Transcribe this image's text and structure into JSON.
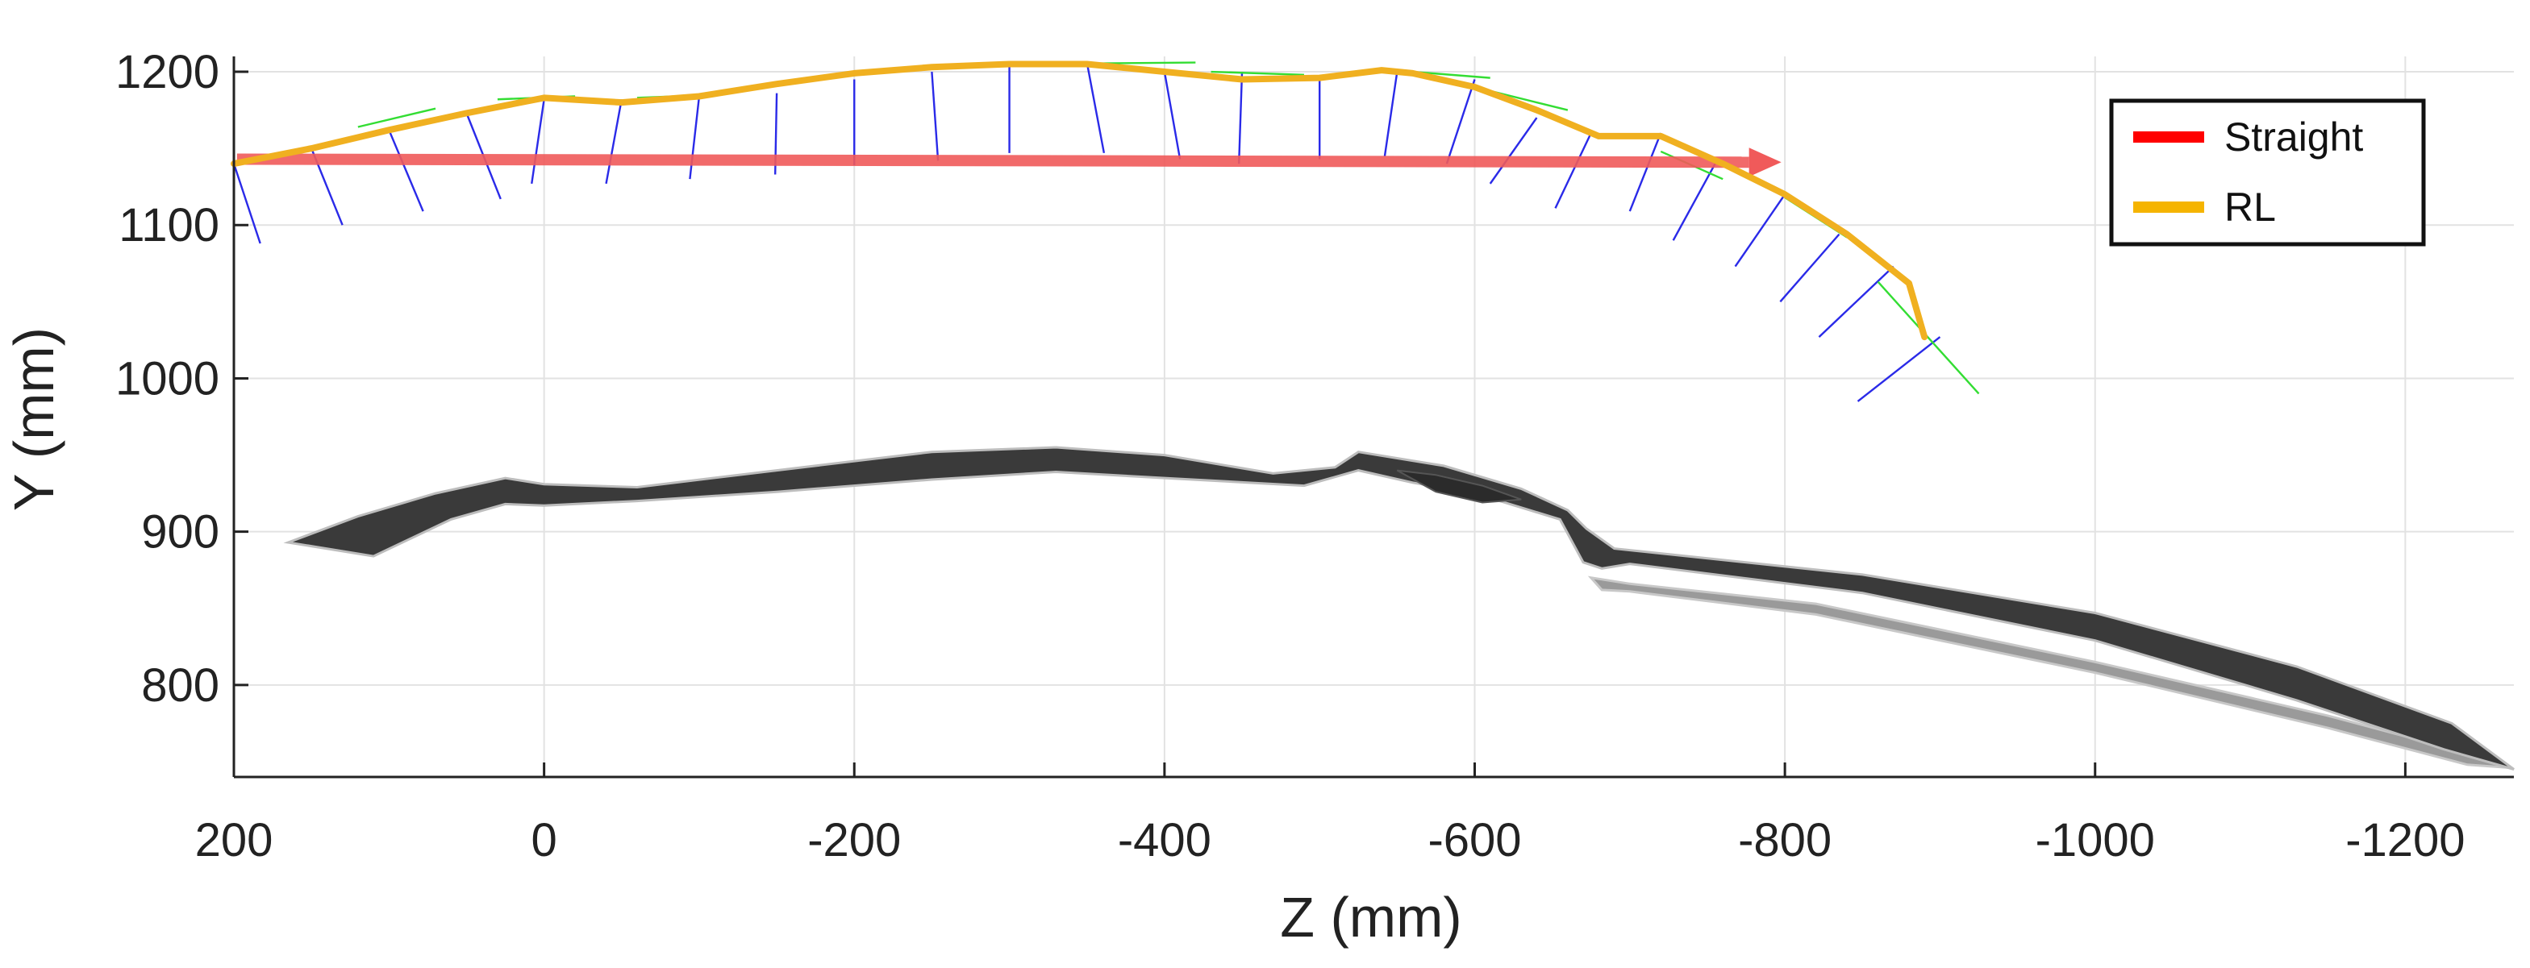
{
  "chart_data": {
    "type": "line",
    "title": "",
    "xlabel": "Z (mm)",
    "ylabel": "Y (mm)",
    "xlim": [
      200,
      -1270
    ],
    "ylim": [
      740,
      1210
    ],
    "x_ticks": [
      200,
      0,
      -200,
      -400,
      -600,
      -800,
      -1000,
      -1200
    ],
    "x_tick_labels": [
      "200",
      "0",
      "-200",
      "-400",
      "-600",
      "-800",
      "-1000",
      "-1200"
    ],
    "y_ticks": [
      800,
      900,
      1000,
      1100,
      1200
    ],
    "y_tick_labels": [
      "800",
      "900",
      "1000",
      "1100",
      "1200"
    ],
    "grid": true,
    "legend_position": "top-right",
    "colors": {
      "straight": "#f05a5a",
      "rl": "#f0b020",
      "normals": "#2a2ae8",
      "tangents": "#33dd33",
      "body_dark": "#3a3a3a",
      "body_light": "#9a9a9a",
      "grid": "#e2e2e2",
      "axis": "#222222"
    },
    "series": [
      {
        "name": "Straight",
        "legend_color": "#ff0000",
        "x": [
          198,
          -780
        ],
        "y": [
          1143,
          1141
        ]
      },
      {
        "name": "RL",
        "legend_color": "#f5b400",
        "x": [
          200,
          150,
          100,
          50,
          0,
          -50,
          -100,
          -150,
          -200,
          -250,
          -300,
          -350,
          -400,
          -450,
          -500,
          -540,
          -560,
          -600,
          -640,
          -680,
          -720,
          -760,
          -800,
          -840,
          -880,
          -890
        ],
        "y": [
          1140,
          1150,
          1162,
          1173,
          1183,
          1180,
          1184,
          1192,
          1199,
          1203,
          1205,
          1205,
          1200,
          1195,
          1196,
          1201,
          1199,
          1190,
          1175,
          1158,
          1158,
          1140,
          1120,
          1094,
          1062,
          1027
        ]
      }
    ],
    "normals": [
      {
        "z": 200,
        "y": 1140,
        "z2": 183,
        "y2": 1088
      },
      {
        "z": 150,
        "y": 1150,
        "z2": 130,
        "y2": 1100
      },
      {
        "z": 100,
        "y": 1162,
        "z2": 78,
        "y2": 1109
      },
      {
        "z": 50,
        "y": 1173,
        "z2": 28,
        "y2": 1117
      },
      {
        "z": 0,
        "y": 1182,
        "z2": 8,
        "y2": 1127
      },
      {
        "z": -50,
        "y": 1182,
        "z2": -40,
        "y2": 1127
      },
      {
        "z": -100,
        "y": 1184,
        "z2": -94,
        "y2": 1130
      },
      {
        "z": -150,
        "y": 1186,
        "z2": -149,
        "y2": 1133
      },
      {
        "z": -200,
        "y": 1195,
        "z2": -200,
        "y2": 1139
      },
      {
        "z": -250,
        "y": 1200,
        "z2": -254,
        "y2": 1142
      },
      {
        "z": -300,
        "y": 1204,
        "z2": -300,
        "y2": 1147
      },
      {
        "z": -350,
        "y": 1206,
        "z2": -361,
        "y2": 1147
      },
      {
        "z": -400,
        "y": 1200,
        "z2": -410,
        "y2": 1143
      },
      {
        "z": -450,
        "y": 1200,
        "z2": -448,
        "y2": 1140
      },
      {
        "z": -500,
        "y": 1197,
        "z2": -500,
        "y2": 1143
      },
      {
        "z": -550,
        "y": 1200,
        "z2": -542,
        "y2": 1145
      },
      {
        "z": -600,
        "y": 1195,
        "z2": -582,
        "y2": 1140
      },
      {
        "z": -640,
        "y": 1170,
        "z2": -610,
        "y2": 1127
      },
      {
        "z": -675,
        "y": 1160,
        "z2": -652,
        "y2": 1111
      },
      {
        "z": -720,
        "y": 1160,
        "z2": -700,
        "y2": 1109
      },
      {
        "z": -755,
        "y": 1140,
        "z2": -728,
        "y2": 1090
      },
      {
        "z": -800,
        "y": 1120,
        "z2": -768,
        "y2": 1073
      },
      {
        "z": -835,
        "y": 1094,
        "z2": -797,
        "y2": 1050
      },
      {
        "z": -870,
        "y": 1073,
        "z2": -822,
        "y2": 1027
      },
      {
        "z": -900,
        "y": 1027,
        "z2": -847,
        "y2": 985
      }
    ],
    "tangents": [
      {
        "z": 120,
        "y": 1164,
        "z2": 70,
        "y2": 1176
      },
      {
        "z": 30,
        "y": 1182,
        "z2": -20,
        "y2": 1184
      },
      {
        "z": -60,
        "y": 1183,
        "z2": -110,
        "y2": 1185
      },
      {
        "z": -300,
        "y": 1205,
        "z2": -420,
        "y2": 1206
      },
      {
        "z": -430,
        "y": 1200,
        "z2": -490,
        "y2": 1198
      },
      {
        "z": -560,
        "y": 1200,
        "z2": -610,
        "y2": 1196
      },
      {
        "z": -600,
        "y": 1190,
        "z2": -660,
        "y2": 1175
      },
      {
        "z": -720,
        "y": 1148,
        "z2": -760,
        "y2": 1130
      },
      {
        "z": -800,
        "y": 1118,
        "z2": -840,
        "y2": 1092
      },
      {
        "z": -860,
        "y": 1063,
        "z2": -925,
        "y2": 990
      }
    ],
    "body_dark_outline": [
      {
        "z": 165,
        "y": 893
      },
      {
        "z": 120,
        "y": 910
      },
      {
        "z": 70,
        "y": 925
      },
      {
        "z": 25,
        "y": 935
      },
      {
        "z": 0,
        "y": 931
      },
      {
        "z": -60,
        "y": 929
      },
      {
        "z": -150,
        "y": 940
      },
      {
        "z": -250,
        "y": 952
      },
      {
        "z": -330,
        "y": 955
      },
      {
        "z": -400,
        "y": 950
      },
      {
        "z": -470,
        "y": 938
      },
      {
        "z": -510,
        "y": 942
      },
      {
        "z": -525,
        "y": 952
      },
      {
        "z": -580,
        "y": 943
      },
      {
        "z": -630,
        "y": 928
      },
      {
        "z": -660,
        "y": 914
      },
      {
        "z": -672,
        "y": 902
      },
      {
        "z": -690,
        "y": 889
      },
      {
        "z": -850,
        "y": 872
      },
      {
        "z": -1000,
        "y": 847
      },
      {
        "z": -1130,
        "y": 812
      },
      {
        "z": -1230,
        "y": 775
      },
      {
        "z": -1270,
        "y": 745
      },
      {
        "z": -1225,
        "y": 758
      },
      {
        "z": -1130,
        "y": 790
      },
      {
        "z": -1000,
        "y": 829
      },
      {
        "z": -850,
        "y": 860
      },
      {
        "z": -700,
        "y": 879
      },
      {
        "z": -682,
        "y": 876
      },
      {
        "z": -670,
        "y": 880
      },
      {
        "z": -655,
        "y": 908
      },
      {
        "z": -600,
        "y": 925
      },
      {
        "z": -560,
        "y": 932
      },
      {
        "z": -525,
        "y": 940
      },
      {
        "z": -490,
        "y": 930
      },
      {
        "z": -400,
        "y": 935
      },
      {
        "z": -330,
        "y": 939
      },
      {
        "z": -250,
        "y": 934
      },
      {
        "z": -150,
        "y": 926
      },
      {
        "z": -60,
        "y": 920
      },
      {
        "z": 0,
        "y": 917
      },
      {
        "z": 25,
        "y": 918
      },
      {
        "z": 60,
        "y": 908
      },
      {
        "z": 110,
        "y": 884
      },
      {
        "z": 165,
        "y": 893
      }
    ],
    "body_dark_fillet": [
      {
        "z": -550,
        "y": 940
      },
      {
        "z": -575,
        "y": 926
      },
      {
        "z": -605,
        "y": 919
      },
      {
        "z": -630,
        "y": 921
      },
      {
        "z": -605,
        "y": 930
      },
      {
        "z": -575,
        "y": 937
      }
    ],
    "body_light_outline": [
      {
        "z": -675,
        "y": 870
      },
      {
        "z": -700,
        "y": 866
      },
      {
        "z": -820,
        "y": 853
      },
      {
        "z": -1000,
        "y": 815
      },
      {
        "z": -1150,
        "y": 780
      },
      {
        "z": -1250,
        "y": 753
      },
      {
        "z": -1268,
        "y": 746
      },
      {
        "z": -1240,
        "y": 748
      },
      {
        "z": -1150,
        "y": 772
      },
      {
        "z": -1000,
        "y": 808
      },
      {
        "z": -820,
        "y": 846
      },
      {
        "z": -700,
        "y": 861
      },
      {
        "z": -682,
        "y": 862
      }
    ]
  }
}
